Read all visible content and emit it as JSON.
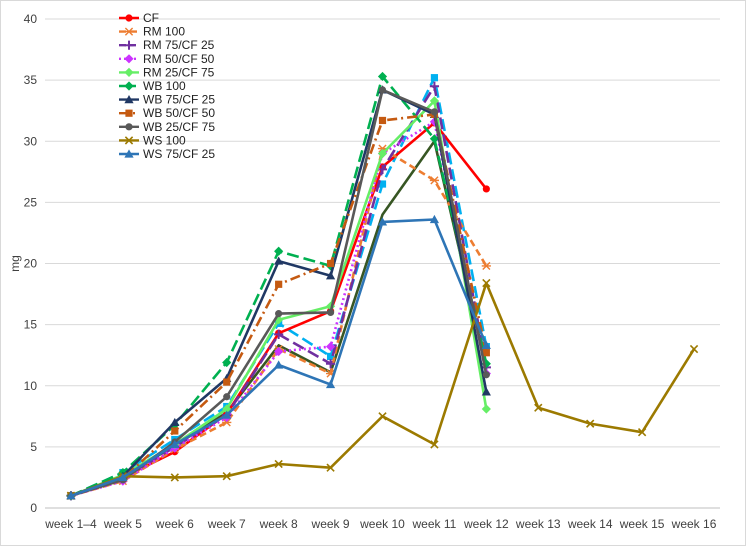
{
  "chart_data": {
    "type": "line",
    "title": "",
    "xlabel": "",
    "ylabel": "mg",
    "ylim": [
      0,
      40
    ],
    "yticks": [
      0,
      5,
      10,
      15,
      20,
      25,
      30,
      35,
      40
    ],
    "grid": true,
    "legend_position": "top-left",
    "categories": [
      "week 1–4",
      "week 5",
      "week 6",
      "week 7",
      "week 8",
      "week 9",
      "week 10",
      "week 11",
      "week 12",
      "week 13",
      "week 14",
      "week 15",
      "week 16"
    ],
    "series": [
      {
        "name": "CF",
        "color": "#ff0000",
        "dash": "solid",
        "marker": "circle",
        "values": [
          1.0,
          2.5,
          4.6,
          7.7,
          14.3,
          16.1,
          27.9,
          31.5,
          26.1,
          null,
          null,
          null,
          null
        ]
      },
      {
        "name": "RM 100",
        "color": "#ed7d31",
        "dash": "dash",
        "marker": "star",
        "values": [
          1.0,
          2.2,
          4.8,
          7.0,
          13.0,
          11.0,
          29.4,
          26.8,
          19.8,
          null,
          null,
          null,
          null
        ]
      },
      {
        "name": "RM 75/CF 25",
        "color": "#7030a0",
        "dash": "longdash",
        "marker": "plus",
        "values": [
          1.0,
          2.4,
          5.0,
          7.6,
          14.2,
          11.8,
          27.7,
          34.5,
          11.5,
          null,
          null,
          null,
          null
        ]
      },
      {
        "name": "RM 50/CF 50",
        "color": "#cc33ff",
        "dash": "dot",
        "marker": "diamond",
        "values": [
          1.0,
          2.2,
          4.9,
          7.4,
          12.8,
          13.2,
          29.0,
          31.6,
          11.0,
          null,
          null,
          null,
          null
        ]
      },
      {
        "name": "RM 25/CF 75",
        "color": "#66ee66",
        "dash": "solid",
        "marker": "diamond",
        "values": [
          1.0,
          2.7,
          5.2,
          8.1,
          15.4,
          16.5,
          29.0,
          33.3,
          8.1,
          null,
          null,
          null,
          null
        ]
      },
      {
        "name": "WB 100",
        "color": "#00b050",
        "dash": "longdash",
        "marker": "diamond",
        "values": [
          1.0,
          2.9,
          6.8,
          11.9,
          21.0,
          19.8,
          35.3,
          30.2,
          11.8,
          null,
          null,
          null,
          null
        ]
      },
      {
        "name": "WB 75/CF 25",
        "color": "#203864",
        "dash": "solid",
        "marker": "triangle",
        "values": [
          1.0,
          2.6,
          7.0,
          10.6,
          20.2,
          19.0,
          34.2,
          32.2,
          9.5,
          null,
          null,
          null,
          null
        ]
      },
      {
        "name": "WB 50/CF 50",
        "color": "#c55a11",
        "dash": "dashdot",
        "marker": "square",
        "values": [
          1.0,
          2.4,
          6.3,
          10.3,
          18.3,
          20.0,
          31.7,
          32.2,
          12.7,
          null,
          null,
          null,
          null
        ]
      },
      {
        "name": "WB 25/CF 75",
        "color": "#595959",
        "dash": "solid",
        "marker": "circle",
        "values": [
          1.0,
          2.3,
          5.4,
          9.1,
          15.9,
          16.0,
          34.2,
          32.4,
          10.9,
          null,
          null,
          null,
          null
        ]
      },
      {
        "name": "WS 100",
        "color": "#9c7a00",
        "dash": "solid",
        "marker": "x",
        "values": [
          1.0,
          2.6,
          2.5,
          2.6,
          3.6,
          3.3,
          7.5,
          5.2,
          18.4,
          8.2,
          6.9,
          6.2,
          13.0
        ]
      },
      {
        "name": "WS 75/CF 25",
        "color": "#2e75b6",
        "dash": "solid",
        "marker": "triangle",
        "values": [
          1.0,
          2.5,
          5.2,
          7.6,
          11.7,
          10.1,
          23.4,
          23.6,
          13.3,
          null,
          null,
          null,
          null
        ]
      }
    ],
    "extra_traces": [
      {
        "name": "dark-green-unlabelled",
        "color": "#375623",
        "dash": "solid",
        "marker": "none",
        "values": [
          1.0,
          2.6,
          5.1,
          7.8,
          13.3,
          11.1,
          24.0,
          30.0,
          11.5,
          null,
          null,
          null,
          null
        ]
      },
      {
        "name": "sky-blue-unlabelled",
        "color": "#00b0f0",
        "dash": "longdash",
        "marker": "square",
        "values": [
          1.0,
          2.9,
          5.6,
          8.3,
          15.1,
          12.4,
          26.5,
          35.2,
          13.2,
          null,
          null,
          null,
          null
        ]
      }
    ]
  }
}
